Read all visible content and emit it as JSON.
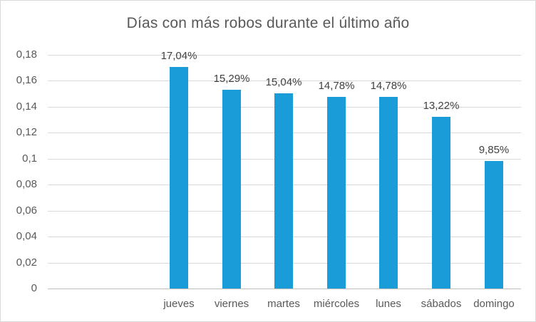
{
  "chart_data": {
    "type": "bar",
    "title": "Días con más robos durante el último año",
    "categories": [
      "jueves",
      "viernes",
      "martes",
      "miércoles",
      "lunes",
      "sábados",
      "domingo"
    ],
    "values": [
      0.1704,
      0.1529,
      0.1504,
      0.1478,
      0.1478,
      0.1322,
      0.0985
    ],
    "data_labels": [
      "17,04%",
      "15,29%",
      "15,04%",
      "14,78%",
      "14,78%",
      "13,22%",
      "9,85%"
    ],
    "y_ticks": [
      {
        "label": "0",
        "value": 0
      },
      {
        "label": "0,02",
        "value": 0.02
      },
      {
        "label": "0,04",
        "value": 0.04
      },
      {
        "label": "0,06",
        "value": 0.06
      },
      {
        "label": "0,08",
        "value": 0.08
      },
      {
        "label": "0,1",
        "value": 0.1
      },
      {
        "label": "0,12",
        "value": 0.12
      },
      {
        "label": "0,14",
        "value": 0.14
      },
      {
        "label": "0,16",
        "value": 0.16
      },
      {
        "label": "0,18",
        "value": 0.18
      }
    ],
    "ylim": [
      0,
      0.18
    ],
    "xlabel": "",
    "ylabel": "",
    "grid": true,
    "legend_position": "none",
    "colors": {
      "bar": "#1A9CD8",
      "gridline": "#D9D9D9",
      "axis_line": "#BFBFBF",
      "tick_text": "#595959",
      "data_label_text": "#404040",
      "title_text": "#595959",
      "border": "#D9D9D9",
      "background": "#FFFFFF"
    }
  }
}
